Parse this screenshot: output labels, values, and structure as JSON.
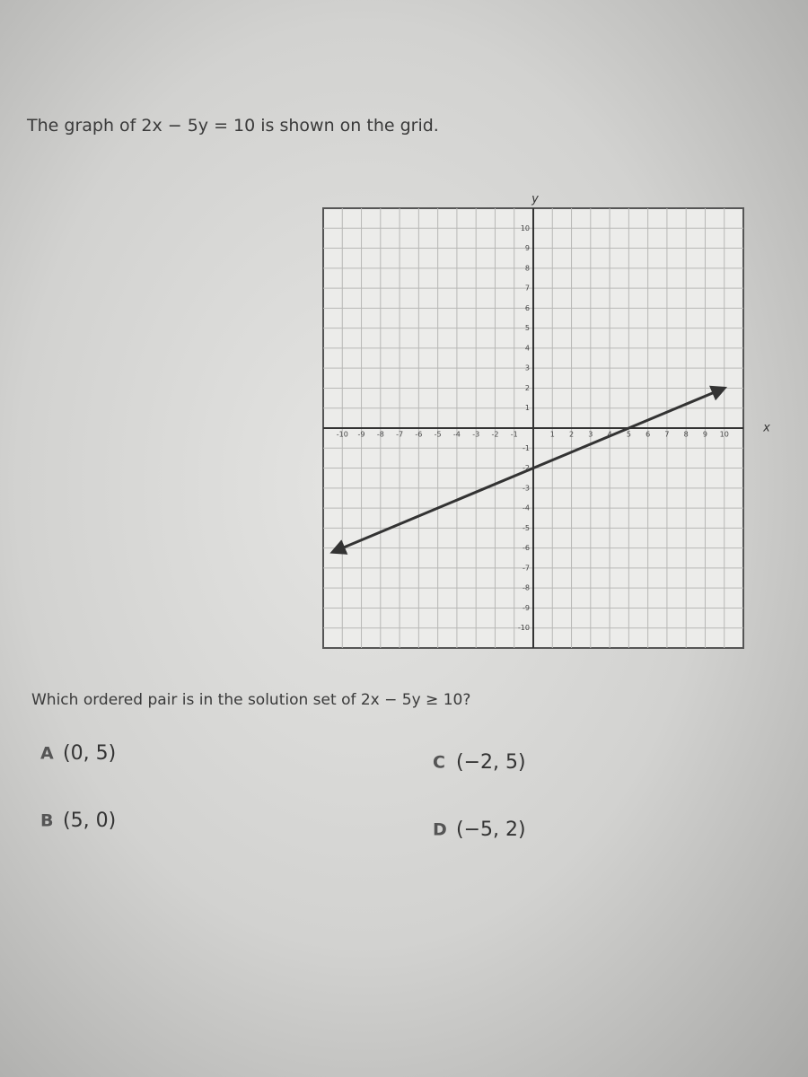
{
  "question": "The graph of 2x − 5y = 10 is shown on the grid.",
  "chart_data": {
    "type": "line",
    "x_label": "x",
    "y_label": "y",
    "x": [
      -10.5,
      10
    ],
    "values": [
      -6.2,
      2
    ],
    "color": "#333333",
    "xlim": [
      -11,
      11
    ],
    "ylim": [
      -11,
      11
    ],
    "xticks": [
      -10,
      -9,
      -8,
      -7,
      -6,
      -5,
      -4,
      -3,
      -2,
      -1,
      1,
      2,
      3,
      4,
      5,
      6,
      7,
      8,
      9,
      10
    ],
    "yticks": [
      -10,
      -9,
      -8,
      -7,
      -6,
      -5,
      -4,
      -3,
      -2,
      -1,
      1,
      2,
      3,
      4,
      5,
      6,
      7,
      8,
      9,
      10
    ],
    "grid": true
  },
  "prompt": "Which ordered pair is in the solution set of 2x − 5y ≥ 10?",
  "choices": [
    {
      "letter": "A",
      "text": "(0, 5)"
    },
    {
      "letter": "B",
      "text": "(5, 0)"
    },
    {
      "letter": "C",
      "text": "(−2, 5)"
    },
    {
      "letter": "D",
      "text": "(−5, 2)"
    }
  ]
}
